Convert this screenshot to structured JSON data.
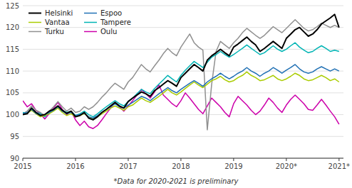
{
  "chart_data": {
    "type": "line",
    "x": [
      2015,
      2015.0833333333,
      2015.1666666667,
      2015.25,
      2015.3333333333,
      2015.4166666667,
      2015.5,
      2015.5833333333,
      2015.6666666667,
      2015.75,
      2015.8333333333,
      2015.9166666667,
      2016,
      2016.0833333333,
      2016.1666666667,
      2016.25,
      2016.3333333333,
      2016.4166666667,
      2016.5,
      2016.5833333333,
      2016.6666666667,
      2016.75,
      2016.8333333333,
      2016.9166666667,
      2017,
      2017.0833333333,
      2017.1666666667,
      2017.25,
      2017.3333333333,
      2017.4166666667,
      2017.5,
      2017.5833333333,
      2017.6666666667,
      2017.75,
      2017.8333333333,
      2017.9166666667,
      2018,
      2018.0833333333,
      2018.1666666667,
      2018.25,
      2018.3333333333,
      2018.4166666667,
      2018.5,
      2018.5833333333,
      2018.6666666667,
      2018.75,
      2018.8333333333,
      2018.9166666667,
      2019,
      2019.0833333333,
      2019.1666666667,
      2019.25,
      2019.3333333333,
      2019.4166666667,
      2019.5,
      2019.5833333333,
      2019.6666666667,
      2019.75,
      2019.8333333333,
      2019.9166666667,
      2020,
      2020.0833333333,
      2020.1666666667,
      2020.25,
      2020.3333333333,
      2020.4166666667,
      2020.5,
      2020.5833333333,
      2020.6666666667,
      2020.75,
      2020.8333333333,
      2020.9166666667,
      2021
    ],
    "xlim": [
      2015,
      2021.0833333333
    ],
    "xticks": [
      2015,
      2016,
      2017,
      2018,
      2019,
      {
        "value": 2020,
        "label": "2020*"
      },
      {
        "value": 2021,
        "label": "2021*"
      }
    ],
    "ylim": [
      90,
      125
    ],
    "yticks": [
      90,
      95,
      100,
      105,
      110,
      115,
      120,
      125
    ],
    "grid": true,
    "legend": "upper left",
    "annotations": [
      "*Data for 2020-2021 is preliminary"
    ],
    "series": [
      {
        "name": "Helsinki",
        "color": "#000000",
        "values": [
          100.0,
          100.2,
          101.5,
          100.5,
          99.8,
          100.0,
          100.8,
          101.2,
          102.0,
          101.0,
          100.3,
          100.8,
          99.5,
          99.8,
          100.5,
          99.2,
          98.8,
          99.5,
          100.5,
          101.2,
          102.0,
          102.8,
          102.0,
          101.5,
          103.0,
          103.8,
          104.5,
          105.2,
          104.8,
          104.2,
          105.5,
          106.2,
          107.0,
          107.8,
          107.2,
          106.5,
          108.5,
          109.5,
          110.5,
          111.5,
          110.8,
          110.0,
          112.5,
          113.5,
          114.2,
          115.0,
          114.2,
          113.5,
          115.5,
          116.2,
          117.0,
          117.8,
          116.8,
          116.0,
          114.5,
          115.2,
          116.0,
          116.8,
          116.0,
          115.2,
          117.5,
          118.5,
          119.5,
          120.0,
          119.0,
          118.0,
          118.5,
          119.5,
          120.8,
          121.5,
          122.2,
          123.0,
          120.0
        ]
      },
      {
        "name": "Espoo",
        "color": "#2070B4",
        "values": [
          100.2,
          100.5,
          101.2,
          100.3,
          99.8,
          100.0,
          100.5,
          101.0,
          101.8,
          100.8,
          100.2,
          100.5,
          99.8,
          100.0,
          100.3,
          99.5,
          99.2,
          99.8,
          100.5,
          101.2,
          101.8,
          102.5,
          101.8,
          101.5,
          102.2,
          102.8,
          103.5,
          104.2,
          103.8,
          103.2,
          104.0,
          104.8,
          105.5,
          106.2,
          105.5,
          105.0,
          105.8,
          106.5,
          107.2,
          107.8,
          107.2,
          106.5,
          107.5,
          108.2,
          108.8,
          109.5,
          108.8,
          108.2,
          108.8,
          109.5,
          110.0,
          110.8,
          110.0,
          109.5,
          108.8,
          109.5,
          110.0,
          110.8,
          110.2,
          109.5,
          110.2,
          110.8,
          111.5,
          110.5,
          109.8,
          109.5,
          109.8,
          110.5,
          111.0,
          110.5,
          110.0,
          110.5,
          110.0
        ]
      },
      {
        "name": "Vantaa",
        "color": "#AACC00",
        "values": [
          100.0,
          100.3,
          101.0,
          100.2,
          99.5,
          99.8,
          100.2,
          100.8,
          101.5,
          100.5,
          99.8,
          100.2,
          99.5,
          99.8,
          100.2,
          99.5,
          99.0,
          99.5,
          100.2,
          100.8,
          101.5,
          102.0,
          101.5,
          101.0,
          101.8,
          102.2,
          103.0,
          103.8,
          103.2,
          102.8,
          103.5,
          104.2,
          105.0,
          105.8,
          105.0,
          104.5,
          105.2,
          106.0,
          106.8,
          107.5,
          106.8,
          106.2,
          107.0,
          107.8,
          108.2,
          108.8,
          108.0,
          107.5,
          107.8,
          108.5,
          109.0,
          109.8,
          109.0,
          108.5,
          107.8,
          108.0,
          108.5,
          109.0,
          108.2,
          107.8,
          108.2,
          108.8,
          109.5,
          109.0,
          108.2,
          107.8,
          108.0,
          108.5,
          109.0,
          108.5,
          107.8,
          108.2,
          107.5
        ]
      },
      {
        "name": "Tampere",
        "color": "#00B4B4",
        "values": [
          100.5,
          100.2,
          101.5,
          100.5,
          100.2,
          99.5,
          100.5,
          101.2,
          102.0,
          101.0,
          100.5,
          100.8,
          99.8,
          100.2,
          100.8,
          100.0,
          99.5,
          100.2,
          101.0,
          101.8,
          102.5,
          103.2,
          102.5,
          102.0,
          103.0,
          103.8,
          104.8,
          105.8,
          105.2,
          104.8,
          106.0,
          107.0,
          108.0,
          109.0,
          108.2,
          107.5,
          109.0,
          110.2,
          111.2,
          112.2,
          111.5,
          110.8,
          112.0,
          113.2,
          113.8,
          114.5,
          113.8,
          113.2,
          113.8,
          114.5,
          115.2,
          116.0,
          115.2,
          114.5,
          113.8,
          114.2,
          115.0,
          115.8,
          115.0,
          114.5,
          115.0,
          115.8,
          116.5,
          115.5,
          114.8,
          114.2,
          114.5,
          115.2,
          115.8,
          115.2,
          114.5,
          114.8,
          114.5
        ]
      },
      {
        "name": "Turku",
        "color": "#909090",
        "values": [
          100.2,
          100.8,
          102.0,
          101.0,
          100.5,
          99.8,
          100.8,
          101.8,
          103.0,
          101.8,
          100.8,
          101.5,
          100.5,
          100.8,
          101.8,
          101.2,
          101.8,
          102.8,
          104.0,
          105.0,
          106.2,
          107.2,
          106.5,
          105.8,
          107.5,
          108.5,
          110.0,
          111.5,
          110.5,
          109.8,
          111.2,
          112.5,
          114.0,
          115.2,
          114.2,
          113.5,
          115.5,
          117.0,
          118.5,
          116.5,
          115.5,
          114.8,
          96.5,
          107.0,
          114.5,
          116.8,
          116.0,
          115.2,
          116.5,
          117.5,
          118.8,
          119.8,
          119.0,
          118.2,
          117.5,
          118.2,
          119.2,
          120.2,
          119.5,
          118.8,
          119.8,
          120.8,
          121.8,
          120.8,
          119.8,
          119.2,
          119.5,
          120.2,
          121.0,
          120.5,
          120.0,
          120.5,
          120.0
        ]
      },
      {
        "name": "Oulu",
        "color": "#CC00AA",
        "values": [
          103.2,
          101.8,
          102.5,
          101.0,
          100.2,
          99.0,
          100.2,
          101.5,
          102.8,
          101.2,
          100.0,
          100.8,
          98.8,
          97.5,
          98.5,
          97.2,
          96.8,
          97.5,
          98.8,
          100.2,
          101.5,
          102.8,
          101.8,
          100.8,
          102.0,
          103.2,
          104.5,
          105.8,
          104.8,
          103.8,
          105.2,
          106.8,
          104.5,
          103.5,
          102.5,
          101.8,
          103.2,
          105.0,
          103.8,
          102.5,
          101.2,
          100.2,
          102.0,
          103.8,
          102.8,
          101.8,
          100.5,
          99.5,
          102.5,
          104.2,
          103.2,
          102.2,
          101.0,
          100.0,
          100.8,
          102.2,
          103.8,
          102.8,
          101.5,
          100.5,
          102.2,
          103.5,
          104.5,
          103.5,
          102.5,
          101.2,
          101.0,
          102.2,
          103.5,
          102.2,
          100.8,
          99.5,
          97.8
        ]
      }
    ]
  }
}
